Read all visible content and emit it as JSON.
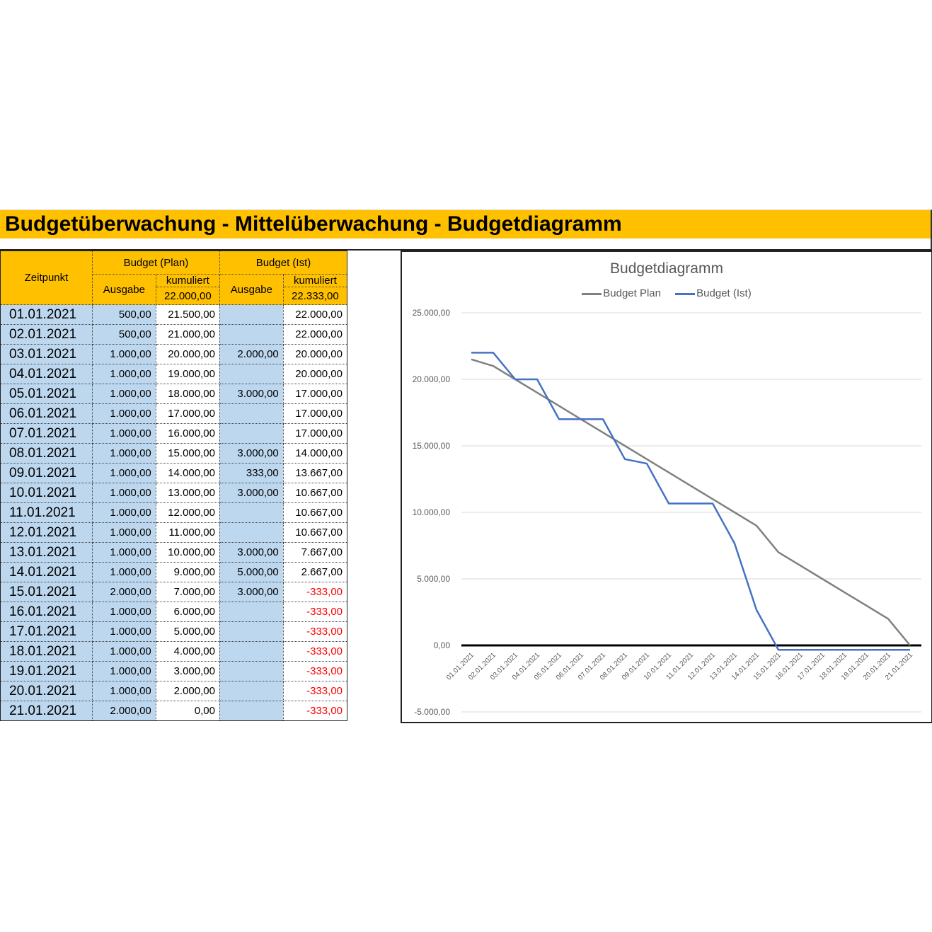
{
  "title": "Budgetüberwachung - Mittelüberwachung - Budgetdiagramm",
  "table": {
    "header": {
      "zeitpunkt": "Zeitpunkt",
      "plan_group": "Budget (Plan)",
      "ist_group": "Budget (Ist)",
      "ausgabe": "Ausgabe",
      "kumuliert": "kumuliert",
      "plan_total": "22.000,00",
      "ist_total": "22.333,00"
    },
    "rows": [
      {
        "date": "01.01.2021",
        "plan_ausgabe": "500,00",
        "plan_kum": "21.500,00",
        "ist_ausgabe": "",
        "ist_kum": "22.000,00"
      },
      {
        "date": "02.01.2021",
        "plan_ausgabe": "500,00",
        "plan_kum": "21.000,00",
        "ist_ausgabe": "",
        "ist_kum": "22.000,00"
      },
      {
        "date": "03.01.2021",
        "plan_ausgabe": "1.000,00",
        "plan_kum": "20.000,00",
        "ist_ausgabe": "2.000,00",
        "ist_kum": "20.000,00"
      },
      {
        "date": "04.01.2021",
        "plan_ausgabe": "1.000,00",
        "plan_kum": "19.000,00",
        "ist_ausgabe": "",
        "ist_kum": "20.000,00"
      },
      {
        "date": "05.01.2021",
        "plan_ausgabe": "1.000,00",
        "plan_kum": "18.000,00",
        "ist_ausgabe": "3.000,00",
        "ist_kum": "17.000,00"
      },
      {
        "date": "06.01.2021",
        "plan_ausgabe": "1.000,00",
        "plan_kum": "17.000,00",
        "ist_ausgabe": "",
        "ist_kum": "17.000,00"
      },
      {
        "date": "07.01.2021",
        "plan_ausgabe": "1.000,00",
        "plan_kum": "16.000,00",
        "ist_ausgabe": "",
        "ist_kum": "17.000,00"
      },
      {
        "date": "08.01.2021",
        "plan_ausgabe": "1.000,00",
        "plan_kum": "15.000,00",
        "ist_ausgabe": "3.000,00",
        "ist_kum": "14.000,00"
      },
      {
        "date": "09.01.2021",
        "plan_ausgabe": "1.000,00",
        "plan_kum": "14.000,00",
        "ist_ausgabe": "333,00",
        "ist_kum": "13.667,00"
      },
      {
        "date": "10.01.2021",
        "plan_ausgabe": "1.000,00",
        "plan_kum": "13.000,00",
        "ist_ausgabe": "3.000,00",
        "ist_kum": "10.667,00"
      },
      {
        "date": "11.01.2021",
        "plan_ausgabe": "1.000,00",
        "plan_kum": "12.000,00",
        "ist_ausgabe": "",
        "ist_kum": "10.667,00"
      },
      {
        "date": "12.01.2021",
        "plan_ausgabe": "1.000,00",
        "plan_kum": "11.000,00",
        "ist_ausgabe": "",
        "ist_kum": "10.667,00"
      },
      {
        "date": "13.01.2021",
        "plan_ausgabe": "1.000,00",
        "plan_kum": "10.000,00",
        "ist_ausgabe": "3.000,00",
        "ist_kum": "7.667,00"
      },
      {
        "date": "14.01.2021",
        "plan_ausgabe": "1.000,00",
        "plan_kum": "9.000,00",
        "ist_ausgabe": "5.000,00",
        "ist_kum": "2.667,00"
      },
      {
        "date": "15.01.2021",
        "plan_ausgabe": "2.000,00",
        "plan_kum": "7.000,00",
        "ist_ausgabe": "3.000,00",
        "ist_kum": "-333,00"
      },
      {
        "date": "16.01.2021",
        "plan_ausgabe": "1.000,00",
        "plan_kum": "6.000,00",
        "ist_ausgabe": "",
        "ist_kum": "-333,00"
      },
      {
        "date": "17.01.2021",
        "plan_ausgabe": "1.000,00",
        "plan_kum": "5.000,00",
        "ist_ausgabe": "",
        "ist_kum": "-333,00"
      },
      {
        "date": "18.01.2021",
        "plan_ausgabe": "1.000,00",
        "plan_kum": "4.000,00",
        "ist_ausgabe": "",
        "ist_kum": "-333,00"
      },
      {
        "date": "19.01.2021",
        "plan_ausgabe": "1.000,00",
        "plan_kum": "3.000,00",
        "ist_ausgabe": "",
        "ist_kum": "-333,00"
      },
      {
        "date": "20.01.2021",
        "plan_ausgabe": "1.000,00",
        "plan_kum": "2.000,00",
        "ist_ausgabe": "",
        "ist_kum": "-333,00"
      },
      {
        "date": "21.01.2021",
        "plan_ausgabe": "2.000,00",
        "plan_kum": "0,00",
        "ist_ausgabe": "",
        "ist_kum": "-333,00"
      }
    ]
  },
  "colors": {
    "header_bg": "#FFC000",
    "input_bg": "#BDD7EE",
    "negative": "#FF0000",
    "plan_line": "#808080",
    "ist_line": "#4472C4"
  },
  "chart_data": {
    "type": "line",
    "title": "Budgetdiagramm",
    "xlabel": "",
    "ylabel": "",
    "ylim": [
      -5000,
      25000
    ],
    "yticks": [
      25000,
      20000,
      15000,
      10000,
      5000,
      0,
      -5000
    ],
    "ytick_labels": [
      "25.000,00",
      "20.000,00",
      "15.000,00",
      "10.000,00",
      "5.000,00",
      "0,00",
      "-5.000,00"
    ],
    "grid": true,
    "legend_position": "top",
    "categories": [
      "01.01.2021",
      "02.01.2021",
      "03.01.2021",
      "04.01.2021",
      "05.01.2021",
      "06.01.2021",
      "07.01.2021",
      "08.01.2021",
      "09.01.2021",
      "10.01.2021",
      "11.01.2021",
      "12.01.2021",
      "13.01.2021",
      "14.01.2021",
      "15.01.2021",
      "16.01.2021",
      "17.01.2021",
      "18.01.2021",
      "19.01.2021",
      "20.01.2021",
      "21.01.2021"
    ],
    "series": [
      {
        "name": "Budget Plan",
        "color": "#808080",
        "values": [
          21500,
          21000,
          20000,
          19000,
          18000,
          17000,
          16000,
          15000,
          14000,
          13000,
          12000,
          11000,
          10000,
          9000,
          7000,
          6000,
          5000,
          4000,
          3000,
          2000,
          0
        ]
      },
      {
        "name": "Budget (Ist)",
        "color": "#4472C4",
        "values": [
          22000,
          22000,
          20000,
          20000,
          17000,
          17000,
          17000,
          14000,
          13667,
          10667,
          10667,
          10667,
          7667,
          2667,
          -333,
          -333,
          -333,
          -333,
          -333,
          -333,
          -333
        ]
      }
    ]
  }
}
